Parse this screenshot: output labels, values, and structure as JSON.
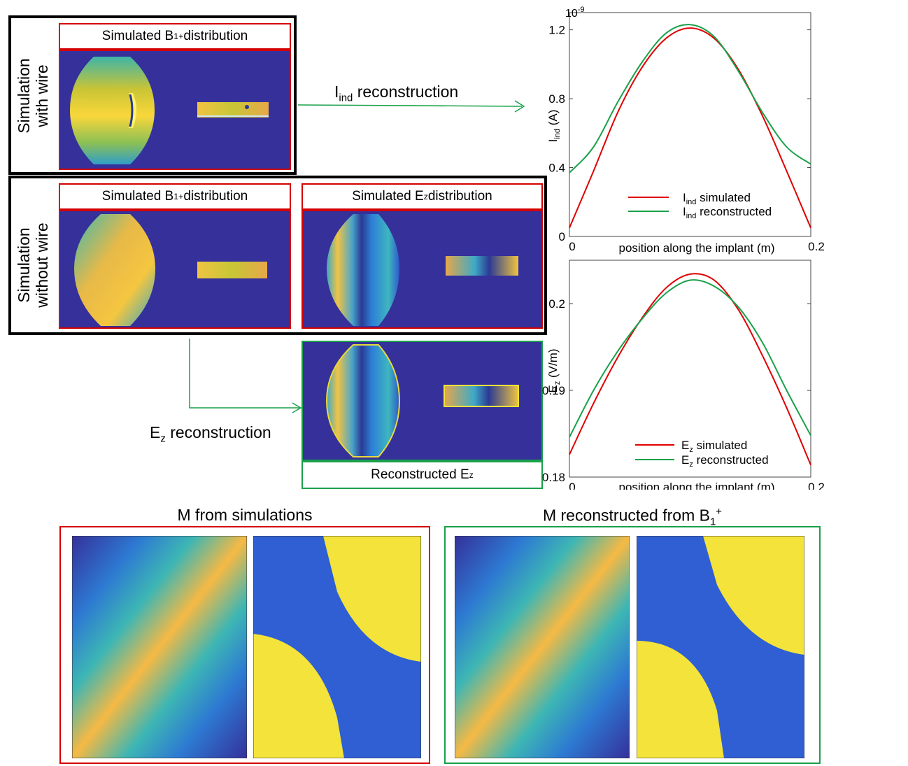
{
  "panel_with_wire": {
    "side_label_line1": "Simulation",
    "side_label_line2": "with wire",
    "b1_label": "Simulated B",
    "b1_sub": "1",
    "b1_sup": "+",
    "b1_suffix": " distribution"
  },
  "panel_without_wire": {
    "side_label_line1": "Simulation",
    "side_label_line2": "without wire",
    "b1_label": "Simulated B",
    "b1_sub": "1",
    "b1_sup": "+",
    "b1_suffix": " distribution",
    "ez_label": "Simulated E",
    "ez_sub": "z",
    "ez_suffix": " distribution"
  },
  "reconstructed_ez": {
    "label": "Reconstructed E",
    "sub": "z"
  },
  "arrows": {
    "iind_prefix": "I",
    "iind_sub": "ind",
    "iind_suffix": " reconstruction",
    "ez_prefix": "E",
    "ez_sub": "z",
    "ez_suffix": " reconstruction"
  },
  "bottom": {
    "left_title": "M from simulations",
    "right_title_prefix": "M reconstructed from B",
    "right_title_sub": "1",
    "right_title_sup": "+"
  },
  "colors": {
    "simulated": "#e00000",
    "reconstructed": "#1aa04a",
    "background_map": "#35309a"
  },
  "chart_data": [
    {
      "type": "line",
      "title": "",
      "exponent_label": "10",
      "exponent_sup": "-9",
      "xlabel": "position along the implant (m)",
      "ylabel_prefix": "I",
      "ylabel_sub": "ind",
      "ylabel_suffix": " (A)",
      "xlim": [
        0,
        0.2
      ],
      "ylim": [
        0,
        1.3
      ],
      "xticks": [
        "0",
        "0.2"
      ],
      "yticks": [
        "0",
        "0.4",
        "0.8",
        "1.2"
      ],
      "legend_position": "bottom-center",
      "series": [
        {
          "name_prefix": "I",
          "name_sub": "ind",
          "name_suffix": " simulated",
          "x": [
            0,
            0.02,
            0.04,
            0.06,
            0.08,
            0.1,
            0.12,
            0.14,
            0.16,
            0.18,
            0.2
          ],
          "values": [
            0.05,
            0.38,
            0.72,
            0.98,
            1.15,
            1.21,
            1.15,
            0.97,
            0.7,
            0.38,
            0.05
          ]
        },
        {
          "name_prefix": "I",
          "name_sub": "ind",
          "name_suffix": " reconstructed",
          "x": [
            0,
            0.02,
            0.04,
            0.06,
            0.08,
            0.1,
            0.12,
            0.14,
            0.16,
            0.18,
            0.2
          ],
          "values": [
            0.37,
            0.52,
            0.78,
            1.01,
            1.18,
            1.23,
            1.16,
            0.96,
            0.72,
            0.52,
            0.42
          ]
        }
      ]
    },
    {
      "type": "line",
      "title": "",
      "xlabel": "position along the implant (m)",
      "ylabel_prefix": "E",
      "ylabel_sub": "z",
      "ylabel_suffix": " (V/m)",
      "xlim": [
        0,
        0.2
      ],
      "ylim": [
        0.18,
        0.205
      ],
      "xticks": [
        "0",
        "0.2"
      ],
      "yticks": [
        "0.18",
        "0.19",
        "0.2"
      ],
      "legend_position": "bottom-center",
      "series": [
        {
          "name_prefix": "E",
          "name_sub": "z",
          "name_suffix": " simulated",
          "x": [
            0,
            0.02,
            0.04,
            0.06,
            0.08,
            0.1,
            0.12,
            0.14,
            0.16,
            0.18,
            0.2
          ],
          "values": [
            0.1826,
            0.1885,
            0.1938,
            0.1983,
            0.2018,
            0.2034,
            0.2027,
            0.1993,
            0.194,
            0.188,
            0.1814
          ]
        },
        {
          "name_prefix": "E",
          "name_sub": "z",
          "name_suffix": " reconstructed",
          "x": [
            0,
            0.02,
            0.04,
            0.06,
            0.08,
            0.1,
            0.12,
            0.14,
            0.16,
            0.18,
            0.2
          ],
          "values": [
            0.1846,
            0.19,
            0.1945,
            0.1982,
            0.2012,
            0.2027,
            0.202,
            0.1996,
            0.1955,
            0.19,
            0.1848
          ]
        }
      ]
    }
  ]
}
